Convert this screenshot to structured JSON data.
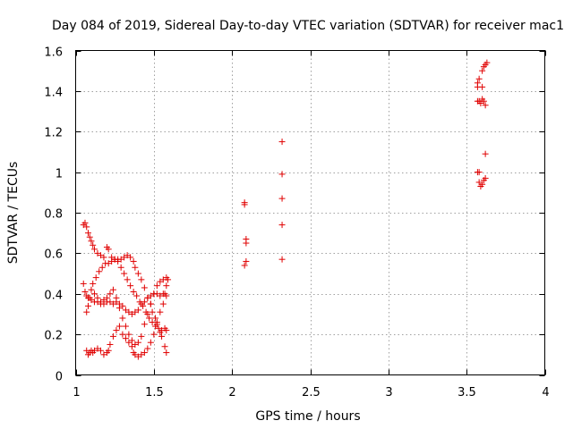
{
  "chart_data": {
    "type": "scatter",
    "title": "Day 084 of 2019, Sidereal Day-to-day VTEC variation (SDTVAR) for receiver mac1",
    "xlabel": "GPS time / hours",
    "ylabel": "SDTVAR / TECUs",
    "xlim": [
      1,
      4
    ],
    "ylim": [
      0,
      1.6
    ],
    "xticks": [
      1,
      1.5,
      2,
      2.5,
      3,
      3.5,
      4
    ],
    "xtick_labels": [
      "1",
      "1.5",
      "2",
      "2.5",
      "3",
      "3.5",
      "4"
    ],
    "yticks": [
      0,
      0.2,
      0.4,
      0.6,
      0.8,
      1,
      1.2,
      1.4,
      1.6
    ],
    "ytick_labels": [
      "0",
      "0.2",
      "0.4",
      "0.6",
      "0.8",
      "1",
      "1.2",
      "1.4",
      "1.6"
    ],
    "grid": true,
    "marker": "+",
    "color": "#e00000",
    "series": [
      {
        "name": "sdtvar",
        "points": [
          [
            1.05,
            0.74
          ],
          [
            1.06,
            0.75
          ],
          [
            1.07,
            0.73
          ],
          [
            1.08,
            0.7
          ],
          [
            1.09,
            0.68
          ],
          [
            1.1,
            0.66
          ],
          [
            1.11,
            0.64
          ],
          [
            1.12,
            0.62
          ],
          [
            1.14,
            0.6
          ],
          [
            1.16,
            0.59
          ],
          [
            1.18,
            0.58
          ],
          [
            1.2,
            0.63
          ],
          [
            1.21,
            0.62
          ],
          [
            1.23,
            0.58
          ],
          [
            1.25,
            0.57
          ],
          [
            1.27,
            0.56
          ],
          [
            1.29,
            0.53
          ],
          [
            1.31,
            0.5
          ],
          [
            1.33,
            0.47
          ],
          [
            1.35,
            0.44
          ],
          [
            1.37,
            0.41
          ],
          [
            1.39,
            0.39
          ],
          [
            1.41,
            0.36
          ],
          [
            1.43,
            0.34
          ],
          [
            1.45,
            0.31
          ],
          [
            1.47,
            0.28
          ],
          [
            1.49,
            0.26
          ],
          [
            1.51,
            0.24
          ],
          [
            1.53,
            0.23
          ],
          [
            1.55,
            0.22
          ],
          [
            1.57,
            0.23
          ],
          [
            1.58,
            0.22
          ],
          [
            1.05,
            0.45
          ],
          [
            1.06,
            0.41
          ],
          [
            1.07,
            0.39
          ],
          [
            1.08,
            0.38
          ],
          [
            1.1,
            0.37
          ],
          [
            1.12,
            0.36
          ],
          [
            1.14,
            0.36
          ],
          [
            1.16,
            0.35
          ],
          [
            1.18,
            0.37
          ],
          [
            1.2,
            0.38
          ],
          [
            1.22,
            0.36
          ],
          [
            1.24,
            0.35
          ],
          [
            1.26,
            0.36
          ],
          [
            1.28,
            0.35
          ],
          [
            1.3,
            0.34
          ],
          [
            1.32,
            0.32
          ],
          [
            1.34,
            0.31
          ],
          [
            1.36,
            0.3
          ],
          [
            1.38,
            0.31
          ],
          [
            1.4,
            0.32
          ],
          [
            1.42,
            0.35
          ],
          [
            1.44,
            0.36
          ],
          [
            1.46,
            0.38
          ],
          [
            1.48,
            0.39
          ],
          [
            1.5,
            0.4
          ],
          [
            1.52,
            0.4
          ],
          [
            1.54,
            0.39
          ],
          [
            1.56,
            0.4
          ],
          [
            1.58,
            0.39
          ],
          [
            1.07,
            0.31
          ],
          [
            1.08,
            0.34
          ],
          [
            1.09,
            0.38
          ],
          [
            1.1,
            0.42
          ],
          [
            1.11,
            0.45
          ],
          [
            1.13,
            0.48
          ],
          [
            1.15,
            0.51
          ],
          [
            1.17,
            0.53
          ],
          [
            1.19,
            0.55
          ],
          [
            1.21,
            0.55
          ],
          [
            1.23,
            0.56
          ],
          [
            1.25,
            0.57
          ],
          [
            1.27,
            0.57
          ],
          [
            1.29,
            0.57
          ],
          [
            1.31,
            0.58
          ],
          [
            1.33,
            0.59
          ],
          [
            1.35,
            0.58
          ],
          [
            1.37,
            0.56
          ],
          [
            1.38,
            0.53
          ],
          [
            1.4,
            0.5
          ],
          [
            1.42,
            0.47
          ],
          [
            1.44,
            0.43
          ],
          [
            1.46,
            0.38
          ],
          [
            1.48,
            0.35
          ],
          [
            1.49,
            0.31
          ],
          [
            1.51,
            0.28
          ],
          [
            1.52,
            0.25
          ],
          [
            1.54,
            0.21
          ],
          [
            1.55,
            0.19
          ],
          [
            1.57,
            0.14
          ],
          [
            1.58,
            0.11
          ],
          [
            1.07,
            0.12
          ],
          [
            1.08,
            0.1
          ],
          [
            1.09,
            0.11
          ],
          [
            1.1,
            0.12
          ],
          [
            1.11,
            0.11
          ],
          [
            1.12,
            0.12
          ],
          [
            1.14,
            0.13
          ],
          [
            1.16,
            0.12
          ],
          [
            1.18,
            0.1
          ],
          [
            1.2,
            0.11
          ],
          [
            1.21,
            0.12
          ],
          [
            1.22,
            0.15
          ],
          [
            1.24,
            0.19
          ],
          [
            1.26,
            0.22
          ],
          [
            1.28,
            0.24
          ],
          [
            1.3,
            0.2
          ],
          [
            1.32,
            0.18
          ],
          [
            1.34,
            0.16
          ],
          [
            1.36,
            0.14
          ],
          [
            1.37,
            0.11
          ],
          [
            1.38,
            0.1
          ],
          [
            1.4,
            0.09
          ],
          [
            1.42,
            0.1
          ],
          [
            1.44,
            0.11
          ],
          [
            1.46,
            0.13
          ],
          [
            1.48,
            0.16
          ],
          [
            1.5,
            0.2
          ],
          [
            1.52,
            0.26
          ],
          [
            1.54,
            0.31
          ],
          [
            1.56,
            0.35
          ],
          [
            1.57,
            0.4
          ],
          [
            1.58,
            0.44
          ],
          [
            1.12,
            0.4
          ],
          [
            1.14,
            0.38
          ],
          [
            1.16,
            0.36
          ],
          [
            1.18,
            0.35
          ],
          [
            1.2,
            0.36
          ],
          [
            1.22,
            0.4
          ],
          [
            1.24,
            0.42
          ],
          [
            1.26,
            0.38
          ],
          [
            1.28,
            0.33
          ],
          [
            1.3,
            0.28
          ],
          [
            1.32,
            0.24
          ],
          [
            1.34,
            0.2
          ],
          [
            1.36,
            0.17
          ],
          [
            1.38,
            0.15
          ],
          [
            1.4,
            0.16
          ],
          [
            1.42,
            0.19
          ],
          [
            1.44,
            0.25
          ],
          [
            1.46,
            0.3
          ],
          [
            1.48,
            0.35
          ],
          [
            1.5,
            0.4
          ],
          [
            1.52,
            0.44
          ],
          [
            1.54,
            0.46
          ],
          [
            1.56,
            0.47
          ],
          [
            1.58,
            0.48
          ],
          [
            1.59,
            0.47
          ],
          [
            2.08,
            0.84
          ],
          [
            2.08,
            0.85
          ],
          [
            2.09,
            0.67
          ],
          [
            2.09,
            0.65
          ],
          [
            2.09,
            0.56
          ],
          [
            2.08,
            0.54
          ],
          [
            2.32,
            1.15
          ],
          [
            2.32,
            0.99
          ],
          [
            2.32,
            0.87
          ],
          [
            2.32,
            0.74
          ],
          [
            2.32,
            0.57
          ],
          [
            3.57,
            1.44
          ],
          [
            3.58,
            1.46
          ],
          [
            3.57,
            1.42
          ],
          [
            3.6,
            1.5
          ],
          [
            3.61,
            1.52
          ],
          [
            3.62,
            1.53
          ],
          [
            3.63,
            1.54
          ],
          [
            3.6,
            1.42
          ],
          [
            3.57,
            1.35
          ],
          [
            3.58,
            1.35
          ],
          [
            3.59,
            1.34
          ],
          [
            3.6,
            1.36
          ],
          [
            3.61,
            1.35
          ],
          [
            3.62,
            1.33
          ],
          [
            3.62,
            1.09
          ],
          [
            3.57,
            1.0
          ],
          [
            3.58,
            1.0
          ],
          [
            3.58,
            0.95
          ],
          [
            3.59,
            0.93
          ],
          [
            3.6,
            0.94
          ],
          [
            3.61,
            0.96
          ],
          [
            3.62,
            0.97
          ]
        ]
      }
    ]
  }
}
